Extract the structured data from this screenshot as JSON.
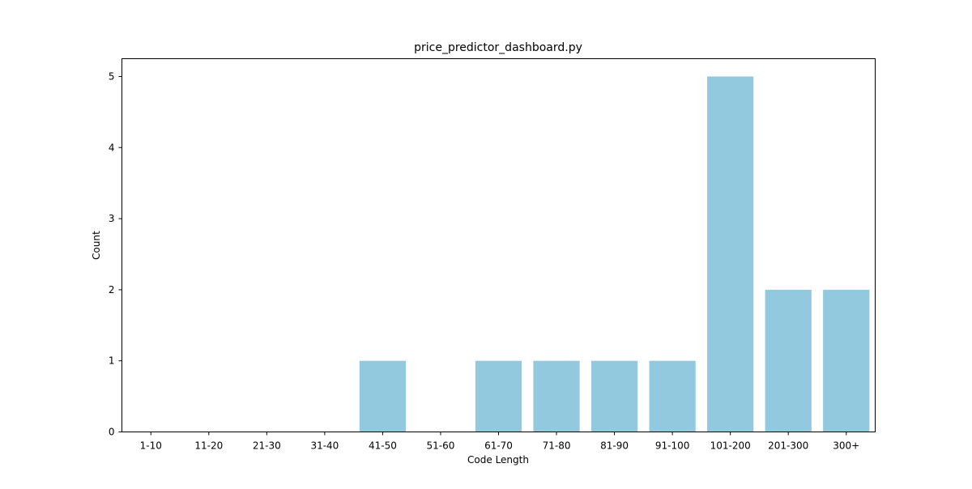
{
  "chart_data": {
    "type": "bar",
    "title": "price_predictor_dashboard.py",
    "xlabel": "Code Length",
    "ylabel": "Count",
    "categories": [
      "1-10",
      "11-20",
      "21-30",
      "31-40",
      "41-50",
      "51-60",
      "61-70",
      "71-80",
      "81-90",
      "91-100",
      "101-200",
      "201-300",
      "300+"
    ],
    "values": [
      0,
      0,
      0,
      0,
      1,
      0,
      1,
      1,
      1,
      1,
      5,
      2,
      2
    ],
    "yticks": [
      "0",
      "1",
      "2",
      "3",
      "4",
      "5"
    ],
    "ylim": [
      0,
      5.25
    ],
    "bar_color": "#92c9de",
    "grid": false,
    "legend": "none"
  }
}
